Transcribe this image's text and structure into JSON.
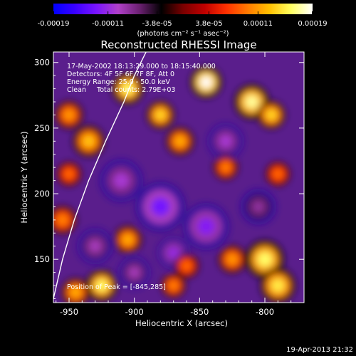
{
  "chart_data": {
    "type": "heatmap",
    "title": "Reconstructed RHESSI Image",
    "xlabel": "Heliocentric X (arcsec)",
    "ylabel": "Heliocentric Y (arcsec)",
    "xlim": [
      -962,
      -770
    ],
    "ylim": [
      117,
      308
    ],
    "x_ticks": [
      -950,
      -900,
      -850,
      -800
    ],
    "x_tick_labels": [
      "-950",
      "-900",
      "-850",
      "-800"
    ],
    "y_ticks": [
      150,
      200,
      250,
      300
    ],
    "y_tick_labels": [
      "150",
      "200",
      "250",
      "300"
    ],
    "colorbar": {
      "range": [
        -0.00019,
        0.00019
      ],
      "ticks": [
        -0.00019,
        -0.00011,
        -3.8e-05,
        3.8e-05,
        0.00011,
        0.00019
      ],
      "tick_labels": [
        "-0.00019",
        "-0.00011",
        "-3.8e-05",
        "3.8e-05",
        "0.00011",
        "0.00019"
      ],
      "units_label": "(photons cm⁻² s⁻¹ asec⁻²)"
    },
    "colors": {
      "colormap": [
        "#0000ff",
        "#3a00ff",
        "#7a14ff",
        "#b040c8",
        "#6a2070",
        "#000000",
        "#7a0000",
        "#c00000",
        "#ff3000",
        "#ff7a00",
        "#ffc000",
        "#ffff60",
        "#ffffff"
      ],
      "background": "#000000",
      "foreground": "#ffffff"
    },
    "annotations": [
      "17-May-2002 18:13:29.000 to 18:15:40.000",
      "Detectors: 4F 5F 6F 7F 8F, Att 0",
      "Energy Range: 25.0 - 50.0 keV",
      "Clean     Total counts: 2.79E+03"
    ],
    "peak_annotation": "Position of Peak = [-845,285]",
    "peak_position": [
      -845,
      285
    ],
    "limb_curve": [
      [
        -962,
        120
      ],
      [
        -955,
        150
      ],
      [
        -946,
        180
      ],
      [
        -935,
        210
      ],
      [
        -922,
        240
      ],
      [
        -908,
        270
      ],
      [
        -900,
        290
      ],
      [
        -891,
        308
      ]
    ],
    "bright_sources": [
      {
        "x": -905,
        "y": 280,
        "value": 0.00016,
        "size": 9
      },
      {
        "x": -880,
        "y": 260,
        "value": 0.00014,
        "size": 8
      },
      {
        "x": -845,
        "y": 285,
        "value": 0.00019,
        "size": 9
      },
      {
        "x": -810,
        "y": 270,
        "value": 0.00017,
        "size": 10
      },
      {
        "x": -795,
        "y": 260,
        "value": 0.00014,
        "size": 8
      },
      {
        "x": -935,
        "y": 240,
        "value": 0.00013,
        "size": 9
      },
      {
        "x": -950,
        "y": 260,
        "value": 0.00011,
        "size": 8
      },
      {
        "x": -865,
        "y": 240,
        "value": 0.00012,
        "size": 8
      },
      {
        "x": -830,
        "y": 220,
        "value": 0.0001,
        "size": 7
      },
      {
        "x": -790,
        "y": 215,
        "value": 9e-05,
        "size": 7
      },
      {
        "x": -800,
        "y": 150,
        "value": 0.00016,
        "size": 11
      },
      {
        "x": -790,
        "y": 130,
        "value": 0.00015,
        "size": 10
      },
      {
        "x": -825,
        "y": 150,
        "value": 0.00011,
        "size": 8
      },
      {
        "x": -860,
        "y": 145,
        "value": 9e-05,
        "size": 7
      },
      {
        "x": -905,
        "y": 165,
        "value": 0.00012,
        "size": 8
      },
      {
        "x": -925,
        "y": 130,
        "value": 0.00016,
        "size": 9
      },
      {
        "x": -945,
        "y": 125,
        "value": 0.00012,
        "size": 8
      },
      {
        "x": -870,
        "y": 130,
        "value": 0.0001,
        "size": 7
      },
      {
        "x": -955,
        "y": 180,
        "value": 0.0001,
        "size": 8
      },
      {
        "x": -950,
        "y": 215,
        "value": 9e-05,
        "size": 7
      }
    ],
    "dark_sources": [
      {
        "x": -880,
        "y": 190,
        "value": -0.00013,
        "size": 14
      },
      {
        "x": -845,
        "y": 175,
        "value": -0.00012,
        "size": 13
      },
      {
        "x": -910,
        "y": 210,
        "value": -0.0001,
        "size": 12
      },
      {
        "x": -830,
        "y": 240,
        "value": -0.0001,
        "size": 10
      },
      {
        "x": -930,
        "y": 160,
        "value": -9e-05,
        "size": 10
      },
      {
        "x": -805,
        "y": 190,
        "value": -8e-05,
        "size": 10
      },
      {
        "x": -870,
        "y": 155,
        "value": -0.00011,
        "size": 9
      },
      {
        "x": -900,
        "y": 140,
        "value": -9e-05,
        "size": 9
      }
    ]
  },
  "footer": {
    "timestamp": "19-Apr-2013 21:32"
  }
}
